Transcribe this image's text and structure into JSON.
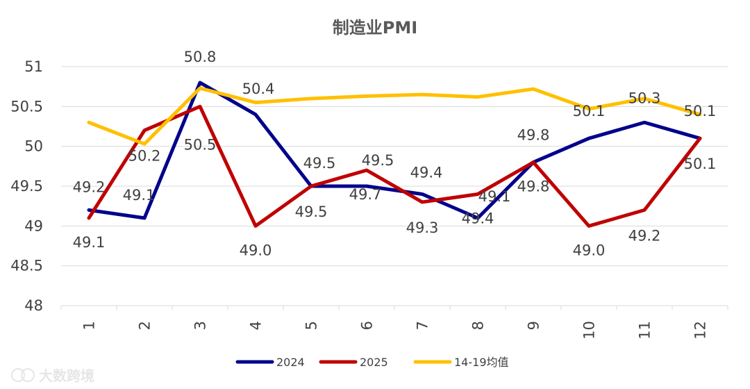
{
  "chart_data": {
    "type": "line",
    "title": "制造业PMI",
    "categories": [
      "1",
      "2",
      "3",
      "4",
      "5",
      "6",
      "7",
      "8",
      "9",
      "10",
      "11",
      "12"
    ],
    "ylim": [
      48,
      51
    ],
    "yticks": [
      "48",
      "48.5",
      "49",
      "49.5",
      "50",
      "50.5",
      "51"
    ],
    "ytick_values": [
      48,
      48.5,
      49,
      49.5,
      50,
      50.5,
      51
    ],
    "grid": true,
    "legend_position": "bottom",
    "series": [
      {
        "name": "2024",
        "color": "#00008b",
        "values": [
          49.2,
          49.1,
          50.8,
          50.4,
          49.5,
          49.5,
          49.4,
          49.1,
          49.8,
          50.1,
          50.3,
          50.1
        ]
      },
      {
        "name": "2025",
        "color": "#c00000",
        "values": [
          49.1,
          50.2,
          50.5,
          49.0,
          49.5,
          49.7,
          49.3,
          49.4,
          49.8,
          49.0,
          49.2,
          50.1
        ]
      },
      {
        "name": "14-19均值",
        "color": "#ffc000",
        "values": [
          50.3,
          50.03,
          50.73,
          50.55,
          50.6,
          50.63,
          50.65,
          50.62,
          50.72,
          50.47,
          50.6,
          50.4
        ]
      }
    ],
    "data_labels": [
      {
        "series": 0,
        "index": 0,
        "text": "49.2"
      },
      {
        "series": 0,
        "index": 1,
        "text": "49.1"
      },
      {
        "series": 0,
        "index": 2,
        "text": "50.8"
      },
      {
        "series": 0,
        "index": 3,
        "text": "50.4"
      },
      {
        "series": 0,
        "index": 4,
        "text": "49.5"
      },
      {
        "series": 0,
        "index": 5,
        "text": "49.5"
      },
      {
        "series": 0,
        "index": 6,
        "text": "49.4"
      },
      {
        "series": 0,
        "index": 7,
        "text": "49.1"
      },
      {
        "series": 0,
        "index": 8,
        "text": "49.8"
      },
      {
        "series": 0,
        "index": 9,
        "text": "50.1"
      },
      {
        "series": 0,
        "index": 10,
        "text": "50.3"
      },
      {
        "series": 0,
        "index": 11,
        "text": "50.1"
      },
      {
        "series": 1,
        "index": 0,
        "text": "49.1"
      },
      {
        "series": 1,
        "index": 1,
        "text": "50.2"
      },
      {
        "series": 1,
        "index": 2,
        "text": "50.5"
      },
      {
        "series": 1,
        "index": 3,
        "text": "49.0"
      },
      {
        "series": 1,
        "index": 4,
        "text": "49.5"
      },
      {
        "series": 1,
        "index": 5,
        "text": "49.7"
      },
      {
        "series": 1,
        "index": 6,
        "text": "49.3"
      },
      {
        "series": 1,
        "index": 7,
        "text": "49.4"
      },
      {
        "series": 1,
        "index": 8,
        "text": "49.8"
      },
      {
        "series": 1,
        "index": 9,
        "text": "49.0"
      },
      {
        "series": 1,
        "index": 10,
        "text": "49.2"
      },
      {
        "series": 1,
        "index": 11,
        "text": "50.1"
      }
    ]
  },
  "watermark": "大数跨境"
}
